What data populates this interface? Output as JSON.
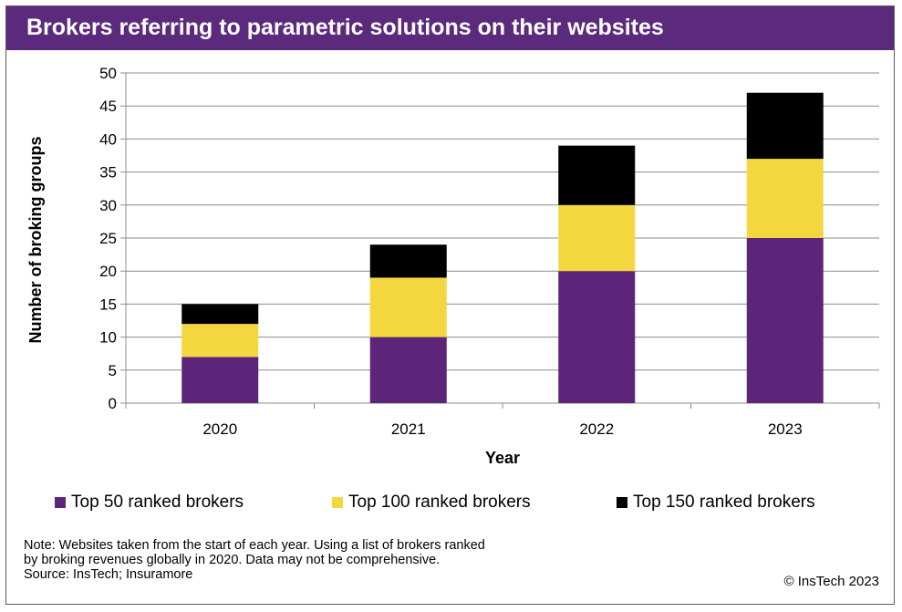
{
  "title": "Brokers referring to parametric solutions on their websites",
  "chart_data": {
    "type": "bar",
    "stacked": true,
    "categories": [
      "2020",
      "2021",
      "2022",
      "2023"
    ],
    "series": [
      {
        "name": "Top 50 ranked brokers",
        "values": [
          7,
          10,
          20,
          25
        ],
        "color": "#5c2579"
      },
      {
        "name": "Top 100 ranked brokers",
        "values": [
          5,
          9,
          10,
          12
        ],
        "color": "#f4d73f"
      },
      {
        "name": "Top 150 ranked brokers",
        "values": [
          3,
          5,
          9,
          10
        ],
        "color": "#000000"
      }
    ],
    "xlabel": "Year",
    "ylabel": "Number of broking groups",
    "ylim": [
      0,
      50
    ],
    "yticks": [
      0,
      5,
      10,
      15,
      20,
      25,
      30,
      35,
      40,
      45,
      50
    ],
    "grid": true,
    "legend": "bottom"
  },
  "note": {
    "line1": "Note: Websites taken from the start of each year. Using a list of brokers ranked",
    "line2": "by broking revenues globally in 2020. Data may not be comprehensive.",
    "line3": "Source: InsTech; Insuramore"
  },
  "copyright": "© InsTech 2023"
}
